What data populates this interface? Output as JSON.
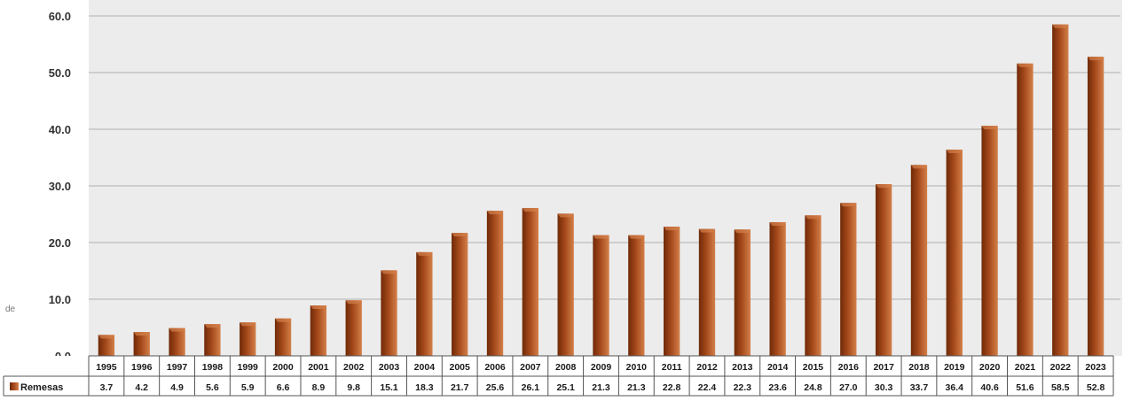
{
  "chart_data": {
    "type": "bar",
    "title": "",
    "xlabel": "",
    "ylabel": "",
    "ylabel_fragment": "de",
    "categories": [
      "1995",
      "1996",
      "1997",
      "1998",
      "1999",
      "2000",
      "2001",
      "2002",
      "2003",
      "2004",
      "2005",
      "2006",
      "2007",
      "2008",
      "2009",
      "2010",
      "2011",
      "2012",
      "2013",
      "2014",
      "2015",
      "2016",
      "2017",
      "2018",
      "2019",
      "2020",
      "2021",
      "2022",
      "2023"
    ],
    "series": [
      {
        "name": "Remesas",
        "values": [
          3.7,
          4.2,
          4.9,
          5.6,
          5.9,
          6.6,
          8.9,
          9.8,
          15.1,
          18.3,
          21.7,
          25.6,
          26.1,
          25.1,
          21.3,
          21.3,
          22.8,
          22.4,
          22.3,
          23.6,
          24.8,
          27.0,
          30.3,
          33.7,
          36.4,
          40.6,
          51.6,
          58.5,
          52.8
        ],
        "labels": [
          "3.7",
          "4.2",
          "4.9",
          "5.6",
          "5.9",
          "6.6",
          "8.9",
          "9.8",
          "15.1",
          "18.3",
          "21.7",
          "25.6",
          "26.1",
          "25.1",
          "21.3",
          "21.3",
          "22.8",
          "22.4",
          "22.3",
          "23.6",
          "24.8",
          "27.0",
          "30.3",
          "33.7",
          "36.4",
          "40.6",
          "51.6",
          "58.5",
          "52.8"
        ],
        "color": "#8B3A0E"
      }
    ],
    "ylim": [
      0,
      60
    ],
    "yticks": [
      "0.0",
      "10.0",
      "20.0",
      "30.0",
      "40.0",
      "50.0",
      "60.0"
    ],
    "grid": true,
    "data_table": true,
    "colors": {
      "plot_background": "#ececec",
      "gridline": "#bdbdbd",
      "bar_dark": "#6f2a08",
      "bar_mid": "#a4481a",
      "bar_light": "#d4804a"
    }
  }
}
